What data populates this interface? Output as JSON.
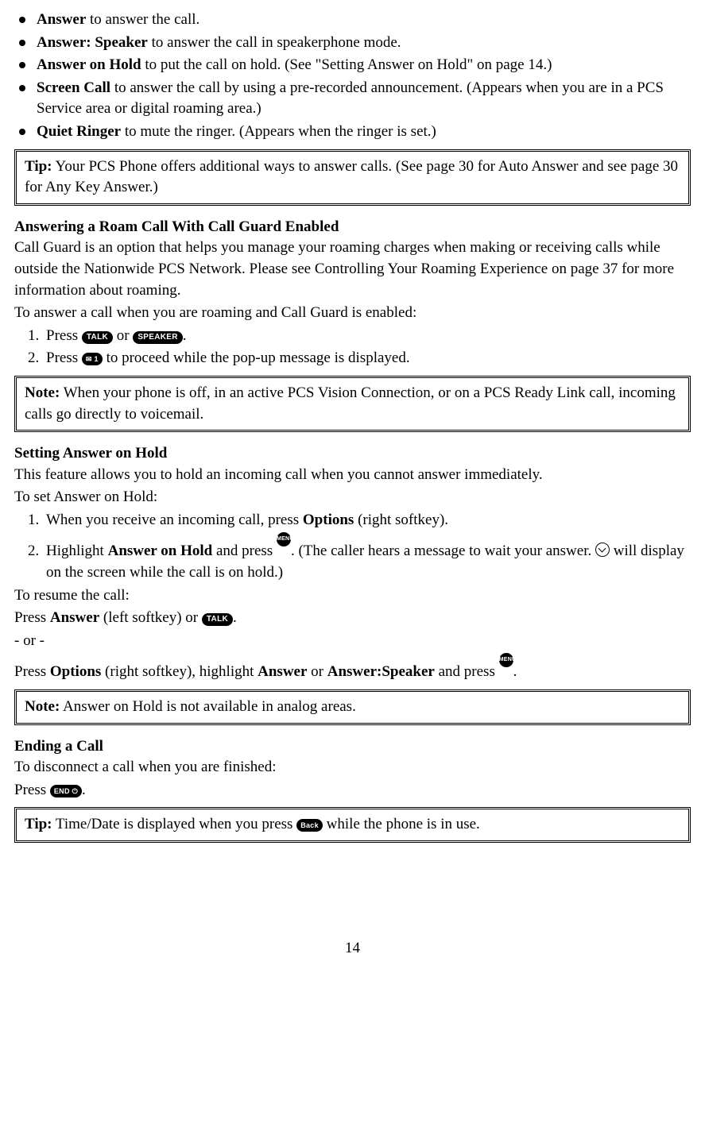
{
  "bullets": [
    {
      "label": "Answer",
      "rest": " to answer the call."
    },
    {
      "label": "Answer: Speaker",
      "rest": " to answer the call in speakerphone mode."
    },
    {
      "label": "Answer on Hold",
      "rest": " to put the call on hold. (See \"Setting Answer on Hold\" on page 14.)"
    },
    {
      "label": "Screen Call",
      "rest": " to answer the call by using a pre-recorded announcement. (Appears when you are in a PCS Service area or digital roaming area.)"
    },
    {
      "label": "Quiet Ringer",
      "rest": " to mute the ringer. (Appears when the ringer is set.)"
    }
  ],
  "tip1": {
    "label": "Tip:",
    "text": " Your PCS Phone offers additional ways to answer calls. (See page 30 for Auto Answer and see page 30 for Any Key Answer.)"
  },
  "sec1": {
    "head": "Answering a Roam Call With Call Guard Enabled",
    "p1": "Call Guard is an option that helps you manage your roaming charges when making or receiving calls while outside the Nationwide PCS Network. Please see Controlling Your Roaming Experience on page 37 for more information about roaming.",
    "p2": "To answer a call when you are roaming and Call Guard is enabled:",
    "step1a": "Press ",
    "step1b": " or ",
    "step1c": ".",
    "step2a": "Press ",
    "step2b": " to proceed while the pop-up message is displayed."
  },
  "note1": {
    "label": "Note:",
    "text": " When your phone is off, in an active PCS Vision Connection, or on a PCS Ready Link call, incoming calls go directly to voicemail."
  },
  "sec2": {
    "head": "Setting Answer on Hold",
    "p1": "This feature allows you to hold an incoming call when you cannot answer immediately.",
    "p2": "To set Answer on Hold:",
    "step1a": "When you receive an incoming call, press ",
    "step1b": "Options",
    "step1c": " (right softkey).",
    "step2a": "Highlight ",
    "step2b": "Answer on Hold",
    "step2c": " and press ",
    "step2d": ". (The caller hears a message to wait your answer. ",
    "step2e": " will display on the screen while the call is on hold.)",
    "p3": "To resume the call:",
    "p4a": "Press ",
    "p4b": "Answer",
    "p4c": " (left softkey) or ",
    "p4d": ".",
    "p5": "- or -",
    "p6a": "Press ",
    "p6b": "Options",
    "p6c": " (right softkey), highlight ",
    "p6d": "Answer",
    "p6e": " or ",
    "p6f": "Answer:Speaker",
    "p6g": " and press ",
    "p6h": "."
  },
  "note2": {
    "label": "Note:",
    "text": " Answer on Hold is not available in analog areas."
  },
  "sec3": {
    "head": "Ending a Call",
    "p1": "To disconnect a call when you are finished:",
    "p2a": "Press ",
    "p2b": "."
  },
  "tip2": {
    "label": "Tip:",
    "text_a": " Time/Date is displayed when you press ",
    "text_b": " while the phone is in use."
  },
  "keys": {
    "talk": "TALK",
    "speaker": "SPEAKER",
    "one": "✉ 1",
    "menuok": "MENU OK",
    "end": "END ⏻",
    "back": "Back"
  },
  "page_number": "14"
}
